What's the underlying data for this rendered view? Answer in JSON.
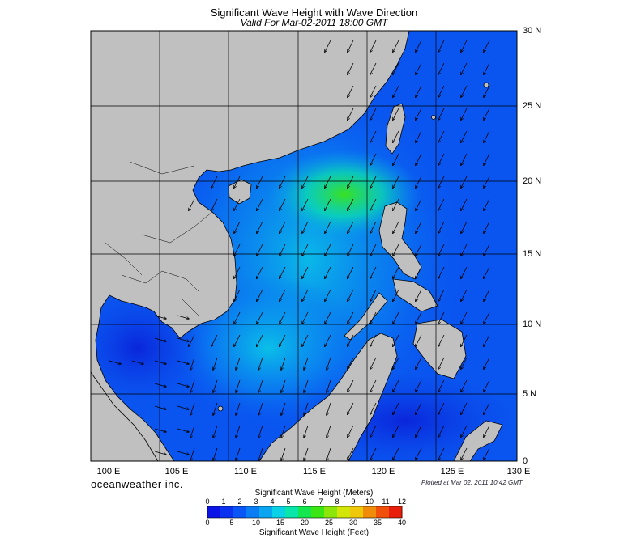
{
  "title": "Significant Wave Height with Wave Direction",
  "subtitle": "Valid For Mar-02-2011 18:00 GMT",
  "lat_labels": [
    "30 N",
    "25 N",
    "20 N",
    "15 N",
    "10 N",
    "5 N",
    "0"
  ],
  "lon_labels": [
    "100 E",
    "105 E",
    "110 E",
    "115 E",
    "120 E",
    "125 E",
    "130 E"
  ],
  "brand": "oceanweather inc.",
  "plotted": "Plotted at Mar 02, 2011 10:42 GMT",
  "colorbar": {
    "meters_title": "Significant Wave Height (Meters)",
    "feet_title": "Significant Wave Height (Feet)",
    "meters_ticks": [
      "0",
      "1",
      "2",
      "3",
      "4",
      "5",
      "6",
      "7",
      "8",
      "9",
      "10",
      "11",
      "12"
    ],
    "feet_ticks": [
      "0",
      "5",
      "10",
      "15",
      "20",
      "25",
      "30",
      "35",
      "40"
    ],
    "colors": [
      "#0a14e6",
      "#0a32f0",
      "#0a55f5",
      "#0a7df5",
      "#0aa5f0",
      "#0ad2e6",
      "#0ae6aa",
      "#14e650",
      "#3ce614",
      "#8ce60a",
      "#d2e60a",
      "#f0c80a",
      "#f08c0a",
      "#f0500a",
      "#e61e0a"
    ]
  },
  "map_colors": {
    "land": "#c0c0c0",
    "water_low": "#1a3ad8",
    "water_mid": "#0a7ef2",
    "water_high": "#14e650",
    "arrow": "#000000"
  }
}
